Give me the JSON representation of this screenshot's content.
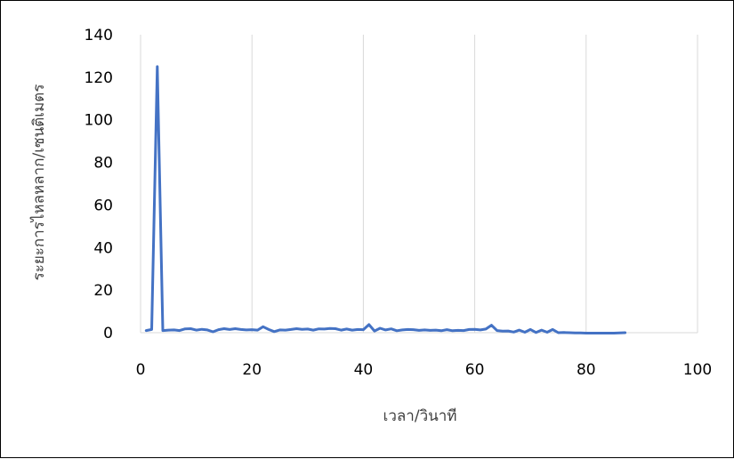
{
  "chart_data": {
    "type": "line",
    "title": "",
    "xlabel": "เวลา/วินาที",
    "ylabel": "ระยะการไหลหลาก/เซนติเมตร",
    "xlim": [
      0,
      100
    ],
    "ylim": [
      0,
      140
    ],
    "xticks": [
      "0",
      "20",
      "40",
      "60",
      "80",
      "100"
    ],
    "yticks": [
      "0",
      "20",
      "40",
      "60",
      "80",
      "100",
      "120",
      "140"
    ],
    "xtick_values": [
      0,
      20,
      40,
      60,
      80,
      100
    ],
    "ytick_values": [
      0,
      20,
      40,
      60,
      80,
      100,
      120,
      140
    ],
    "grid": {
      "vertical": true,
      "horizontal": false
    },
    "legend": "none",
    "series": [
      {
        "color": "#4472c4",
        "x": [
          1,
          2,
          3,
          4,
          5,
          6,
          7,
          8,
          9,
          10,
          11,
          12,
          13,
          14,
          15,
          16,
          17,
          18,
          19,
          20,
          21,
          22,
          23,
          24,
          25,
          26,
          27,
          28,
          29,
          30,
          31,
          32,
          33,
          34,
          35,
          36,
          37,
          38,
          39,
          40,
          41,
          42,
          43,
          44,
          45,
          46,
          47,
          48,
          49,
          50,
          51,
          52,
          53,
          54,
          55,
          56,
          57,
          58,
          59,
          60,
          61,
          62,
          63,
          64,
          65,
          66,
          67,
          68,
          69,
          70,
          71,
          72,
          73,
          74,
          75,
          76,
          77,
          78,
          79,
          80,
          81,
          82,
          83,
          84,
          85,
          86,
          87
        ],
        "y": [
          1,
          1.5,
          125,
          1,
          1.2,
          1.3,
          1,
          1.8,
          1.9,
          1.2,
          1.6,
          1.3,
          0.4,
          1.4,
          1.9,
          1.5,
          1.9,
          1.5,
          1.3,
          1.4,
          1.2,
          2.8,
          1.5,
          0.5,
          1.3,
          1.2,
          1.5,
          1.9,
          1.6,
          1.7,
          1.2,
          1.8,
          1.7,
          2,
          1.9,
          1.2,
          1.7,
          1.2,
          1.5,
          1.4,
          3.8,
          0.8,
          2.1,
          1.3,
          1.8,
          0.9,
          1.3,
          1.5,
          1.4,
          1.1,
          1.3,
          1.1,
          1.2,
          0.9,
          1.4,
          0.9,
          1.1,
          1,
          1.5,
          1.6,
          1.3,
          1.7,
          3.5,
          1,
          0.7,
          0.8,
          0.3,
          1.2,
          0.2,
          1.5,
          0.1,
          1.2,
          0.2,
          1.5,
          0,
          0.1,
          0,
          -0.1,
          -0.1,
          -0.2,
          -0.2,
          -0.2,
          -0.2,
          -0.2,
          -0.2,
          -0.1,
          0
        ]
      }
    ]
  }
}
